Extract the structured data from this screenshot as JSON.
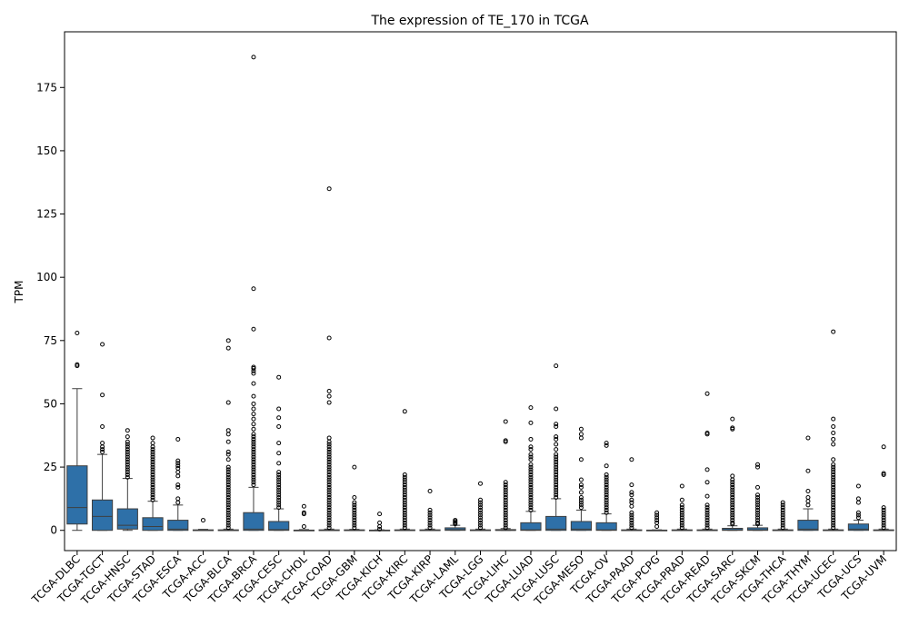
{
  "chart_data": {
    "type": "box",
    "title": "The expression of TE_170 in TCGA",
    "xlabel": "",
    "ylabel": "TPM",
    "ylim": [
      -8,
      197
    ],
    "yticks": [
      0,
      25,
      50,
      75,
      100,
      125,
      150,
      175
    ],
    "box_color": "#2e70a8",
    "grid": false,
    "legend": "none",
    "categories": [
      "TCGA-DLBC",
      "TCGA-TGCT",
      "TCGA-HNSC",
      "TCGA-STAD",
      "TCGA-ESCA",
      "TCGA-ACC",
      "TCGA-BLCA",
      "TCGA-BRCA",
      "TCGA-CESC",
      "TCGA-CHOL",
      "TCGA-COAD",
      "TCGA-GBM",
      "TCGA-KICH",
      "TCGA-KIRC",
      "TCGA-KIRP",
      "TCGA-LAML",
      "TCGA-LGG",
      "TCGA-LIHC",
      "TCGA-LUAD",
      "TCGA-LUSC",
      "TCGA-MESO",
      "TCGA-OV",
      "TCGA-PAAD",
      "TCGA-PCPG",
      "TCGA-PRAD",
      "TCGA-READ",
      "TCGA-SARC",
      "TCGA-SKCM",
      "TCGA-THCA",
      "TCGA-THYM",
      "TCGA-UCEC",
      "TCGA-UCS",
      "TCGA-UVM"
    ],
    "boxes": [
      {
        "whislo": 0,
        "q1": 2.5,
        "med": 9,
        "q3": 25.5,
        "whishi": 56,
        "fliers": [
          65,
          65.5,
          78
        ]
      },
      {
        "whislo": 0,
        "q1": 0,
        "med": 5.5,
        "q3": 12,
        "whishi": 30,
        "fliers": [
          31,
          32,
          33,
          34.5,
          41,
          53.5,
          73.5
        ]
      },
      {
        "whislo": 0,
        "q1": 0.5,
        "med": 2,
        "q3": 8.5,
        "whishi": 20.5,
        "fliers": [
          21,
          22,
          23,
          24,
          25,
          26,
          27,
          28,
          29,
          30,
          31,
          32,
          33,
          34,
          35,
          37,
          39.5
        ]
      },
      {
        "whislo": 0,
        "q1": 0,
        "med": 1.5,
        "q3": 5,
        "whishi": 11.5,
        "fliers": [
          12,
          13,
          14,
          15,
          16,
          17,
          18,
          19,
          20,
          21,
          22,
          23,
          24,
          25,
          26,
          27,
          28,
          29,
          30,
          31,
          32,
          33,
          34.5,
          36.5
        ]
      },
      {
        "whislo": 0,
        "q1": 0,
        "med": 0.5,
        "q3": 4,
        "whishi": 10,
        "fliers": [
          11,
          12.5,
          17,
          18,
          21.5,
          23,
          24.5,
          25.5,
          26.5,
          27.5,
          36
        ]
      },
      {
        "whislo": 0,
        "q1": 0,
        "med": 0,
        "q3": 0.2,
        "whishi": 0.4,
        "fliers": [
          4
        ]
      },
      {
        "whislo": 0,
        "q1": 0,
        "med": 0,
        "q3": 0.2,
        "whishi": 0.5,
        "fliers": [
          1,
          2,
          3,
          4,
          5,
          6,
          7,
          8,
          9,
          10,
          11,
          12,
          13,
          14,
          15,
          16,
          17,
          18,
          19,
          20,
          21,
          22,
          23,
          24,
          25,
          28,
          30,
          31,
          35,
          38,
          39.5,
          50.5,
          72,
          75
        ]
      },
      {
        "whislo": 0,
        "q1": 0,
        "med": 0.5,
        "q3": 7,
        "whishi": 17,
        "fliers": [
          18,
          19,
          20,
          21,
          22,
          23,
          24,
          25,
          26,
          27,
          28,
          29,
          30,
          31,
          32,
          33,
          34,
          35,
          36,
          37,
          38,
          40,
          42,
          44,
          46,
          48,
          50,
          53,
          58,
          62,
          63,
          64,
          64.5,
          79.5,
          95.5,
          187
        ]
      },
      {
        "whislo": 0,
        "q1": 0,
        "med": 0.3,
        "q3": 3.5,
        "whishi": 8.5,
        "fliers": [
          9,
          10,
          11,
          12,
          13,
          14,
          15,
          16,
          17,
          18,
          19,
          20,
          21,
          22,
          23,
          26.5,
          30.5,
          34.5,
          41,
          44.5,
          48,
          60.5
        ]
      },
      {
        "whislo": 0,
        "q1": 0,
        "med": 0,
        "q3": 0.1,
        "whishi": 0.3,
        "fliers": [
          1.5,
          6.5,
          7,
          9.5
        ]
      },
      {
        "whislo": 0,
        "q1": 0,
        "med": 0,
        "q3": 0.2,
        "whishi": 0.5,
        "fliers": [
          1,
          2,
          3,
          4,
          5,
          6,
          7,
          8,
          9,
          10,
          11,
          12,
          13,
          14,
          15,
          16,
          17,
          18,
          19,
          20,
          21,
          22,
          23,
          24,
          25,
          26,
          27,
          28,
          29,
          30,
          31,
          32,
          33,
          34,
          35,
          36.5,
          50.5,
          53,
          55,
          76,
          135
        ]
      },
      {
        "whislo": 0,
        "q1": 0,
        "med": 0,
        "q3": 0.2,
        "whishi": 0.4,
        "fliers": [
          1,
          2,
          3,
          4,
          5,
          6,
          7,
          8,
          9,
          10,
          11,
          13,
          25
        ]
      },
      {
        "whislo": 0,
        "q1": 0,
        "med": 0,
        "q3": 0.1,
        "whishi": 0.2,
        "fliers": [
          0.5,
          1.5,
          3,
          6.5
        ]
      },
      {
        "whislo": 0,
        "q1": 0,
        "med": 0,
        "q3": 0.2,
        "whishi": 0.5,
        "fliers": [
          1,
          2,
          3,
          4,
          5,
          6,
          7,
          8,
          9,
          10,
          11,
          12,
          13,
          14,
          15,
          16,
          17,
          18,
          19,
          20,
          21,
          22,
          47
        ]
      },
      {
        "whislo": 0,
        "q1": 0,
        "med": 0,
        "q3": 0.2,
        "whishi": 0.5,
        "fliers": [
          1,
          2,
          3,
          4,
          5,
          6,
          7,
          8,
          15.5
        ]
      },
      {
        "whislo": 0,
        "q1": 0,
        "med": 0.3,
        "q3": 1,
        "whishi": 2,
        "fliers": [
          2.5,
          3,
          3.5,
          4
        ]
      },
      {
        "whislo": 0,
        "q1": 0,
        "med": 0,
        "q3": 0.2,
        "whishi": 0.5,
        "fliers": [
          1,
          2,
          3,
          4,
          5,
          6,
          7,
          8,
          9,
          10,
          11,
          12,
          18.5
        ]
      },
      {
        "whislo": 0,
        "q1": 0,
        "med": 0,
        "q3": 0.3,
        "whishi": 0.7,
        "fliers": [
          1,
          2,
          3,
          4,
          5,
          6,
          7,
          8,
          9,
          10,
          11,
          12,
          13,
          14,
          15,
          16,
          17,
          18,
          19,
          35,
          35.5,
          43
        ]
      },
      {
        "whislo": 0,
        "q1": 0,
        "med": 0.2,
        "q3": 3,
        "whishi": 7.5,
        "fliers": [
          8,
          9,
          10,
          11,
          12,
          13,
          14,
          15,
          16,
          17,
          18,
          19,
          20,
          21,
          22,
          23,
          24,
          25,
          26,
          28,
          29,
          30,
          32,
          33,
          36,
          42.5,
          48.5
        ]
      },
      {
        "whislo": 0,
        "q1": 0,
        "med": 0.5,
        "q3": 5.5,
        "whishi": 12.5,
        "fliers": [
          13,
          14,
          15,
          16,
          17,
          18,
          19,
          20,
          21,
          22,
          23,
          24,
          25,
          26,
          27,
          28,
          29,
          30,
          32,
          34,
          36,
          37,
          41,
          42,
          48,
          65
        ]
      },
      {
        "whislo": 0,
        "q1": 0,
        "med": 0.5,
        "q3": 3.5,
        "whishi": 8,
        "fliers": [
          9,
          10,
          11,
          12,
          13,
          15,
          17,
          18,
          20,
          28,
          36.5,
          38,
          40
        ]
      },
      {
        "whislo": 0,
        "q1": 0,
        "med": 0.2,
        "q3": 3,
        "whishi": 6.5,
        "fliers": [
          7,
          8,
          9,
          10,
          11,
          12,
          13,
          14,
          15,
          16,
          17,
          18,
          19,
          20,
          21,
          22,
          25.5,
          33.5,
          34.5
        ]
      },
      {
        "whislo": 0,
        "q1": 0,
        "med": 0,
        "q3": 0.2,
        "whishi": 0.5,
        "fliers": [
          1,
          2,
          3,
          4,
          5,
          6,
          7,
          9.5,
          11,
          12,
          14,
          15,
          18,
          28
        ]
      },
      {
        "whislo": 0,
        "q1": 0,
        "med": 0,
        "q3": 0.1,
        "whishi": 0.2,
        "fliers": [
          1.5,
          3,
          4,
          5,
          6,
          7
        ]
      },
      {
        "whislo": 0,
        "q1": 0,
        "med": 0,
        "q3": 0.2,
        "whishi": 0.5,
        "fliers": [
          1,
          2,
          3,
          4,
          5,
          6,
          7,
          8,
          9,
          10,
          12,
          17.5
        ]
      },
      {
        "whislo": 0,
        "q1": 0,
        "med": 0,
        "q3": 0.2,
        "whishi": 0.5,
        "fliers": [
          1,
          2,
          3,
          4,
          5,
          6,
          7,
          8,
          9,
          10,
          13.5,
          19,
          24,
          38,
          38.5,
          54
        ]
      },
      {
        "whislo": 0,
        "q1": 0,
        "med": 0.2,
        "q3": 0.8,
        "whishi": 1.8,
        "fliers": [
          2.5,
          3,
          4,
          5,
          6,
          7,
          8,
          9,
          10,
          11,
          12,
          13,
          14,
          15,
          16,
          17,
          18,
          19,
          20,
          21.5,
          40,
          40.5,
          44
        ]
      },
      {
        "whislo": 0,
        "q1": 0,
        "med": 0.2,
        "q3": 1,
        "whishi": 2,
        "fliers": [
          2.5,
          3,
          4,
          5,
          6,
          7,
          8,
          9,
          10,
          11,
          12,
          13,
          14,
          17,
          25,
          26
        ]
      },
      {
        "whislo": 0,
        "q1": 0,
        "med": 0,
        "q3": 0.2,
        "whishi": 0.5,
        "fliers": [
          1,
          2,
          3,
          4,
          5,
          6,
          7,
          8,
          9,
          10,
          11
        ]
      },
      {
        "whislo": 0,
        "q1": 0,
        "med": 0.5,
        "q3": 4,
        "whishi": 8.5,
        "fliers": [
          10,
          11.5,
          13,
          15.5,
          23.5,
          36.5
        ]
      },
      {
        "whislo": 0,
        "q1": 0,
        "med": 0,
        "q3": 0.2,
        "whishi": 0.5,
        "fliers": [
          1,
          2,
          3,
          4,
          5,
          6,
          7,
          8,
          9,
          10,
          11,
          12,
          13,
          14,
          15,
          16,
          17,
          18,
          19,
          20,
          21,
          22,
          23,
          24,
          25,
          26,
          28,
          34,
          36,
          38.5,
          41,
          44,
          78.5
        ]
      },
      {
        "whislo": 0,
        "q1": 0,
        "med": 0.5,
        "q3": 2.5,
        "whishi": 4,
        "fliers": [
          5,
          6,
          7,
          11,
          12.5,
          17.5
        ]
      },
      {
        "whislo": 0,
        "q1": 0,
        "med": 0,
        "q3": 0.2,
        "whishi": 0.5,
        "fliers": [
          1,
          2,
          3,
          4,
          5,
          6,
          7,
          8,
          9,
          22,
          22.5,
          33
        ]
      }
    ]
  }
}
